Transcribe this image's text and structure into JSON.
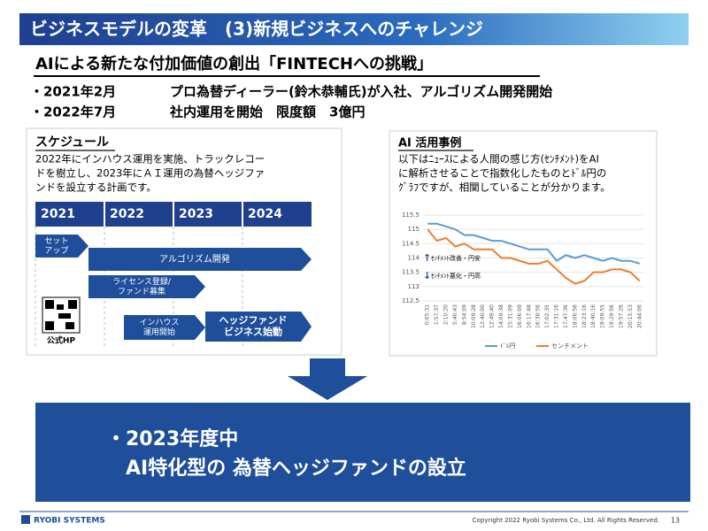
{
  "header": {
    "title": "ビジネスモデルの変革　(3)新規ビジネスへのチャレンジ",
    "subtitle": "AIによる新たな付加価値の創出「FINTECHへの挑戦」"
  },
  "bullets": [
    {
      "date": "・2021年2月",
      "text": "プロ為替ディーラー(鈴木恭輔氏)が入社、アルゴリズム開発開始"
    },
    {
      "date": "・2022年7月",
      "text": "社内運用を開始　限度額　3億円"
    }
  ],
  "schedule": {
    "title": "スケジュール",
    "description": [
      "2022年にインハウス運用を実施、トラックレコー",
      "ドを樹立し、2023年にＡＩ運用の為替ヘッジファ",
      "ンドを設立する計画です。"
    ],
    "years": [
      "2021",
      "2022",
      "2023",
      "2024"
    ],
    "steps": [
      [
        "セット",
        "アップ"
      ],
      [
        "アルゴリズム開発"
      ],
      [
        "ライセンス登録/",
        "ファンド募集"
      ],
      [
        "インハウス",
        "運用開始"
      ],
      [
        "ヘッジファンド",
        "ビジネス始動"
      ]
    ],
    "qr_label": "公式HP"
  },
  "ai_case": {
    "title": "AI 活用事例",
    "description": [
      "以下はﾆｭｰｽによる人間の感じ方(ｾﾝﾁﾒﾝﾄ)をAI",
      "に解析させることで指数化したものとﾄﾞﾙ円の",
      "ｸﾞﾗﾌですが、相関していることが分かります。"
    ]
  },
  "chart_data": {
    "type": "line",
    "annotations": [
      "ｾﾝﾁﾒﾝﾄ改善・円安",
      "ｾﾝﾁﾒﾝﾄ悪化・円高"
    ],
    "categories": [
      "0:05:31",
      "1:57:37",
      "2:10:20",
      "5:40:43",
      "8:54:09",
      "10:09:28",
      "12:40:00",
      "12:49:40",
      "14:09:38",
      "15:31:09",
      "16:06:09",
      "16:17:48",
      "16:38:56",
      "17:02:35",
      "17:31:16",
      "17:47:36",
      "18:06:56",
      "18:23:16",
      "18:40:16",
      "19:09:55",
      "19:29:56",
      "19:57:26",
      "20:15:53",
      "20:44:06"
    ],
    "series": [
      {
        "name": "ﾄﾞﾙ円",
        "color": "#5b9bd5",
        "values": [
          115.2,
          115.2,
          115.1,
          115.0,
          114.8,
          114.8,
          114.7,
          114.6,
          114.6,
          114.5,
          114.4,
          114.3,
          114.3,
          114.3,
          113.9,
          114.1,
          114.0,
          114.1,
          114.0,
          113.9,
          114.0,
          113.9,
          113.9,
          113.8
        ]
      },
      {
        "name": "センチメント",
        "color": "#ed7d31",
        "values": [
          115.0,
          114.6,
          114.7,
          114.4,
          114.5,
          114.3,
          114.3,
          114.3,
          114.0,
          114.0,
          113.9,
          113.8,
          113.8,
          113.9,
          113.6,
          113.3,
          113.1,
          113.2,
          113.5,
          113.5,
          113.6,
          113.6,
          113.5,
          113.2
        ]
      }
    ],
    "ylim": [
      112.5,
      115.5
    ],
    "yticks": [
      112.5,
      113,
      113.5,
      114,
      114.5,
      115,
      115.5
    ],
    "grid": true
  },
  "conclusion": [
    "・2023年度中",
    "AI特化型の 為替ヘッジファンドの設立"
  ],
  "footer": {
    "logo": "RYOBI SYSTEMS",
    "copyright": "Copyright 2022 Ryobi Systems Co., Ltd. All Rights Reserved.",
    "page": "13"
  }
}
